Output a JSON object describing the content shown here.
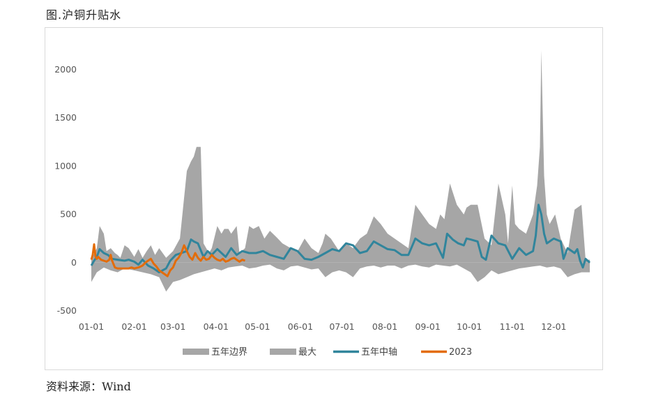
{
  "title": "图.沪铜升贴水",
  "source": "资料来源：Wind",
  "chart_data": {
    "type": "area",
    "title": "图.沪铜升贴水",
    "xlabel": "",
    "ylabel": "",
    "ylim": [
      -500,
      2500
    ],
    "yticks": [
      -500,
      0,
      500,
      1000,
      1500,
      2000
    ],
    "ytick_labels": [
      "-500",
      "0",
      "500",
      "1000",
      "1500",
      "2000"
    ],
    "xlim": [
      1,
      361
    ],
    "xticks": [
      1,
      32,
      60,
      91,
      121,
      152,
      182,
      213,
      244,
      274,
      305,
      335
    ],
    "xtick_labels": [
      "01-01",
      "02-01",
      "03-01",
      "04-01",
      "05-01",
      "06-01",
      "07-01",
      "08-01",
      "09-01",
      "10-01",
      "11-01",
      "12-01"
    ],
    "grid": false,
    "legend_position": "bottom",
    "colors": {
      "band": "#a6a6a6",
      "median": "#31859c",
      "y2023": "#e36c09"
    },
    "legend": [
      {
        "label": "五年边界",
        "type": "area",
        "color": "#a6a6a6"
      },
      {
        "label": "最大",
        "type": "area",
        "color": "#a6a6a6"
      },
      {
        "label": "五年中轴",
        "type": "line",
        "color": "#31859c"
      },
      {
        "label": "2023",
        "type": "line",
        "color": "#e36c09"
      }
    ],
    "series": [
      {
        "name": "最大",
        "x": [
          1,
          5,
          7,
          10,
          12,
          15,
          18,
          20,
          22,
          25,
          28,
          32,
          35,
          38,
          41,
          44,
          47,
          50,
          55,
          60,
          65,
          70,
          73,
          75,
          77,
          80,
          82,
          84,
          86,
          88,
          92,
          95,
          97,
          100,
          102,
          106,
          108,
          112,
          115,
          118,
          122,
          126,
          130,
          135,
          139,
          145,
          150,
          155,
          160,
          165,
          168,
          170,
          174,
          180,
          185,
          190,
          195,
          200,
          205,
          210,
          215,
          220,
          225,
          230,
          235,
          240,
          245,
          250,
          253,
          256,
          260,
          265,
          270,
          272,
          275,
          278,
          280,
          285,
          290,
          295,
          300,
          302,
          305,
          307,
          310,
          315,
          320,
          323,
          325,
          326,
          328,
          330,
          332,
          336,
          340,
          345,
          350,
          355,
          358,
          361
        ],
        "values": [
          30,
          150,
          380,
          300,
          120,
          150,
          100,
          80,
          50,
          180,
          150,
          60,
          140,
          50,
          120,
          180,
          80,
          150,
          50,
          120,
          250,
          950,
          1050,
          1100,
          1200,
          1200,
          200,
          150,
          100,
          150,
          380,
          300,
          350,
          350,
          300,
          380,
          100,
          150,
          380,
          350,
          380,
          250,
          330,
          260,
          200,
          150,
          120,
          250,
          150,
          100,
          200,
          300,
          250,
          120,
          200,
          150,
          250,
          300,
          480,
          400,
          300,
          250,
          200,
          150,
          600,
          500,
          400,
          350,
          500,
          450,
          820,
          600,
          500,
          570,
          600,
          600,
          600,
          250,
          180,
          820,
          500,
          200,
          800,
          400,
          350,
          300,
          500,
          800,
          1200,
          2200,
          900,
          500,
          400,
          500,
          250,
          100,
          550,
          600,
          30,
          30
        ]
      },
      {
        "name": "五年边界",
        "x": [
          1,
          5,
          10,
          15,
          20,
          25,
          32,
          38,
          44,
          50,
          55,
          60,
          65,
          70,
          75,
          80,
          85,
          90,
          95,
          100,
          105,
          110,
          115,
          120,
          125,
          130,
          135,
          140,
          145,
          150,
          155,
          160,
          165,
          170,
          175,
          180,
          185,
          190,
          195,
          200,
          205,
          210,
          215,
          220,
          225,
          230,
          235,
          240,
          245,
          250,
          255,
          260,
          265,
          270,
          275,
          280,
          285,
          290,
          295,
          300,
          305,
          310,
          315,
          320,
          325,
          330,
          335,
          340,
          345,
          350,
          355,
          361
        ],
        "values": [
          -200,
          -100,
          -50,
          -80,
          -100,
          -60,
          -80,
          -100,
          -120,
          -150,
          -300,
          -200,
          -180,
          -150,
          -120,
          -100,
          -80,
          -60,
          -80,
          -50,
          -40,
          -30,
          -60,
          -50,
          -30,
          -20,
          -60,
          -80,
          -40,
          -30,
          -50,
          -70,
          -60,
          -150,
          -100,
          -80,
          -100,
          -150,
          -60,
          -40,
          -30,
          -50,
          -30,
          -30,
          -60,
          -30,
          -20,
          -40,
          -50,
          -20,
          -30,
          -40,
          -20,
          -60,
          -100,
          -200,
          -150,
          -80,
          -120,
          -100,
          -80,
          -60,
          -50,
          -40,
          -30,
          -50,
          -40,
          -60,
          -150,
          -120,
          -100,
          -100
        ]
      },
      {
        "name": "五年中轴",
        "x": [
          1,
          3,
          5,
          7,
          10,
          13,
          16,
          20,
          25,
          28,
          32,
          35,
          38,
          42,
          46,
          50,
          55,
          58,
          62,
          66,
          70,
          73,
          75,
          78,
          82,
          85,
          88,
          92,
          95,
          98,
          102,
          106,
          110,
          115,
          120,
          125,
          130,
          135,
          140,
          145,
          150,
          155,
          160,
          165,
          170,
          175,
          180,
          185,
          190,
          195,
          200,
          205,
          210,
          215,
          220,
          225,
          230,
          235,
          240,
          245,
          250,
          255,
          258,
          262,
          266,
          270,
          272,
          275,
          280,
          283,
          286,
          290,
          295,
          300,
          305,
          310,
          315,
          320,
          322,
          324,
          326,
          328,
          330,
          335,
          340,
          342,
          345,
          350,
          352,
          354,
          356,
          358,
          361
        ],
        "values": [
          -30,
          20,
          60,
          140,
          100,
          80,
          40,
          30,
          20,
          30,
          10,
          -20,
          30,
          -30,
          -60,
          -100,
          -60,
          20,
          80,
          100,
          120,
          240,
          220,
          200,
          60,
          120,
          80,
          140,
          100,
          60,
          150,
          80,
          120,
          100,
          100,
          120,
          80,
          60,
          40,
          150,
          120,
          40,
          30,
          60,
          100,
          140,
          120,
          200,
          180,
          100,
          120,
          220,
          180,
          140,
          130,
          80,
          80,
          250,
          200,
          180,
          200,
          50,
          300,
          240,
          200,
          180,
          250,
          240,
          220,
          60,
          30,
          280,
          200,
          180,
          40,
          150,
          80,
          120,
          280,
          600,
          500,
          300,
          200,
          250,
          220,
          40,
          150,
          100,
          140,
          20,
          -50,
          40,
          0
        ]
      },
      {
        "name": "2023",
        "x": [
          1,
          2,
          3,
          4,
          5,
          6,
          8,
          10,
          12,
          14,
          15,
          16,
          18,
          20,
          22,
          24,
          26,
          28,
          30,
          32,
          35,
          38,
          40,
          42,
          44,
          46,
          48,
          50,
          52,
          54,
          56,
          58,
          60,
          62,
          64,
          66,
          68,
          70,
          72,
          74,
          76,
          78,
          80,
          82,
          84,
          86,
          88,
          90,
          92,
          94,
          96,
          98,
          100,
          102,
          104,
          106,
          108,
          110,
          112
        ],
        "values": [
          30,
          80,
          190,
          60,
          40,
          60,
          30,
          20,
          10,
          30,
          80,
          20,
          -50,
          -60,
          -60,
          -60,
          -60,
          -60,
          -50,
          -60,
          -50,
          -30,
          0,
          20,
          40,
          -10,
          -40,
          -80,
          -100,
          -120,
          -140,
          -80,
          -50,
          20,
          50,
          100,
          180,
          120,
          60,
          30,
          100,
          50,
          20,
          60,
          30,
          40,
          80,
          50,
          30,
          20,
          40,
          10,
          20,
          40,
          50,
          30,
          10,
          30,
          20
        ]
      }
    ]
  }
}
